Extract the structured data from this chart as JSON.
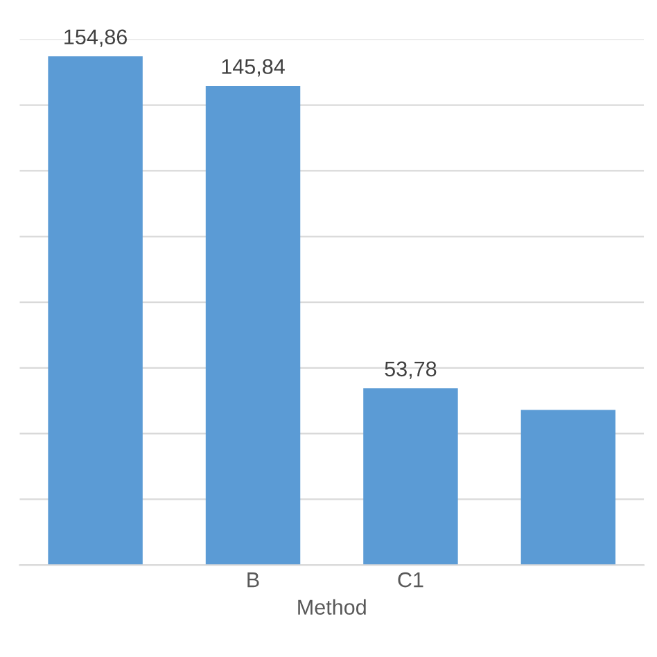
{
  "chart_data": {
    "type": "bar",
    "xlabel": "Method",
    "categories": [
      null,
      "B",
      "C1",
      null
    ],
    "values": [
      154.86,
      145.84,
      53.78,
      47.2
    ],
    "color": "#5b9bd5",
    "value_labels": [
      "154,86",
      "145,84",
      "53,78",
      null
    ],
    "ylim": [
      0,
      160
    ],
    "yticks": [
      {
        "value": 0,
        "label": null
      },
      {
        "value": 20,
        "label": null
      },
      {
        "value": 40,
        "label": null
      },
      {
        "value": 60,
        "label": null
      },
      {
        "value": 80,
        "label": null
      },
      {
        "value": 100,
        "label": null
      },
      {
        "value": 120,
        "label": null
      },
      {
        "value": 140,
        "label": null
      },
      {
        "value": 160,
        "label": null
      }
    ],
    "grid": "y",
    "tick_labels": "x"
  }
}
